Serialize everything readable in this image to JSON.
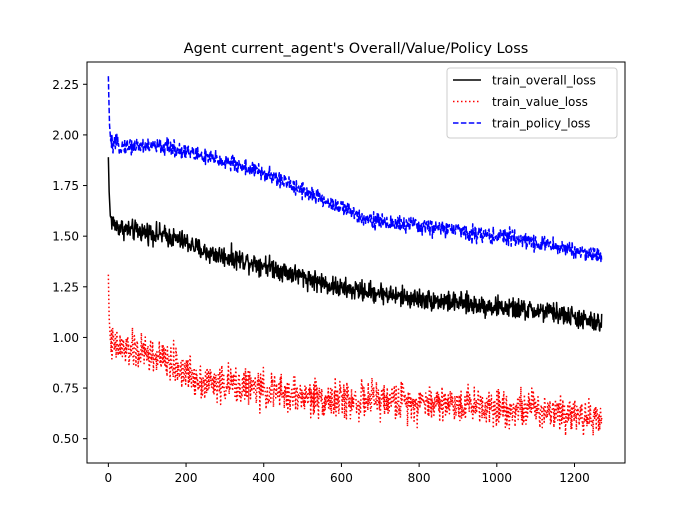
{
  "chart_data": {
    "type": "line",
    "title": "Agent current_agent's Overall/Value/Policy Loss",
    "xlabel": "",
    "ylabel": "",
    "xlim": [
      -55,
      1330
    ],
    "ylim": [
      0.38,
      2.36
    ],
    "x_ticks": [
      0,
      200,
      400,
      600,
      800,
      1000,
      1200
    ],
    "y_ticks": [
      0.5,
      0.75,
      1.0,
      1.25,
      1.5,
      1.75,
      2.0,
      2.25
    ],
    "x_tick_labels": [
      "0",
      "200",
      "400",
      "600",
      "800",
      "1000",
      "1200"
    ],
    "y_tick_labels": [
      "0.50",
      "0.75",
      "1.00",
      "1.25",
      "1.50",
      "1.75",
      "2.00",
      "2.25"
    ],
    "grid": false,
    "legend_position": "top-right",
    "series": [
      {
        "name": "train_overall_loss",
        "color": "#000000",
        "style": "solid",
        "noise": 0.025,
        "x": [
          0,
          2,
          5,
          10,
          20,
          50,
          100,
          150,
          200,
          250,
          300,
          350,
          400,
          450,
          500,
          550,
          600,
          650,
          700,
          750,
          800,
          850,
          900,
          950,
          1000,
          1050,
          1100,
          1150,
          1200,
          1250,
          1270
        ],
        "values": [
          1.89,
          1.72,
          1.6,
          1.57,
          1.55,
          1.53,
          1.52,
          1.5,
          1.47,
          1.42,
          1.4,
          1.38,
          1.36,
          1.33,
          1.3,
          1.27,
          1.24,
          1.23,
          1.22,
          1.2,
          1.19,
          1.18,
          1.17,
          1.16,
          1.15,
          1.14,
          1.13,
          1.12,
          1.1,
          1.07,
          1.07
        ]
      },
      {
        "name": "train_value_loss",
        "color": "#ff0000",
        "style": "dotted",
        "noise": 0.045,
        "x": [
          0,
          2,
          5,
          10,
          20,
          50,
          100,
          150,
          200,
          250,
          300,
          350,
          400,
          450,
          500,
          550,
          600,
          650,
          700,
          750,
          800,
          850,
          900,
          950,
          1000,
          1050,
          1100,
          1150,
          1200,
          1250,
          1270
        ],
        "values": [
          1.31,
          1.1,
          0.99,
          0.96,
          0.95,
          0.94,
          0.92,
          0.88,
          0.83,
          0.78,
          0.77,
          0.76,
          0.74,
          0.72,
          0.71,
          0.7,
          0.69,
          0.69,
          0.69,
          0.69,
          0.68,
          0.68,
          0.67,
          0.67,
          0.66,
          0.65,
          0.65,
          0.64,
          0.63,
          0.6,
          0.59
        ]
      },
      {
        "name": "train_policy_loss",
        "color": "#0000ff",
        "style": "dashed",
        "noise": 0.02,
        "x": [
          0,
          1,
          3,
          6,
          10,
          20,
          50,
          100,
          150,
          200,
          250,
          300,
          350,
          400,
          450,
          500,
          550,
          600,
          650,
          700,
          750,
          800,
          850,
          900,
          950,
          1000,
          1050,
          1100,
          1150,
          1200,
          1250,
          1270
        ],
        "values": [
          2.29,
          2.2,
          2.05,
          1.97,
          1.95,
          1.95,
          1.945,
          1.945,
          1.94,
          1.92,
          1.89,
          1.87,
          1.84,
          1.81,
          1.77,
          1.73,
          1.68,
          1.64,
          1.6,
          1.57,
          1.56,
          1.55,
          1.54,
          1.53,
          1.51,
          1.5,
          1.49,
          1.47,
          1.45,
          1.43,
          1.41,
          1.4
        ]
      }
    ]
  }
}
